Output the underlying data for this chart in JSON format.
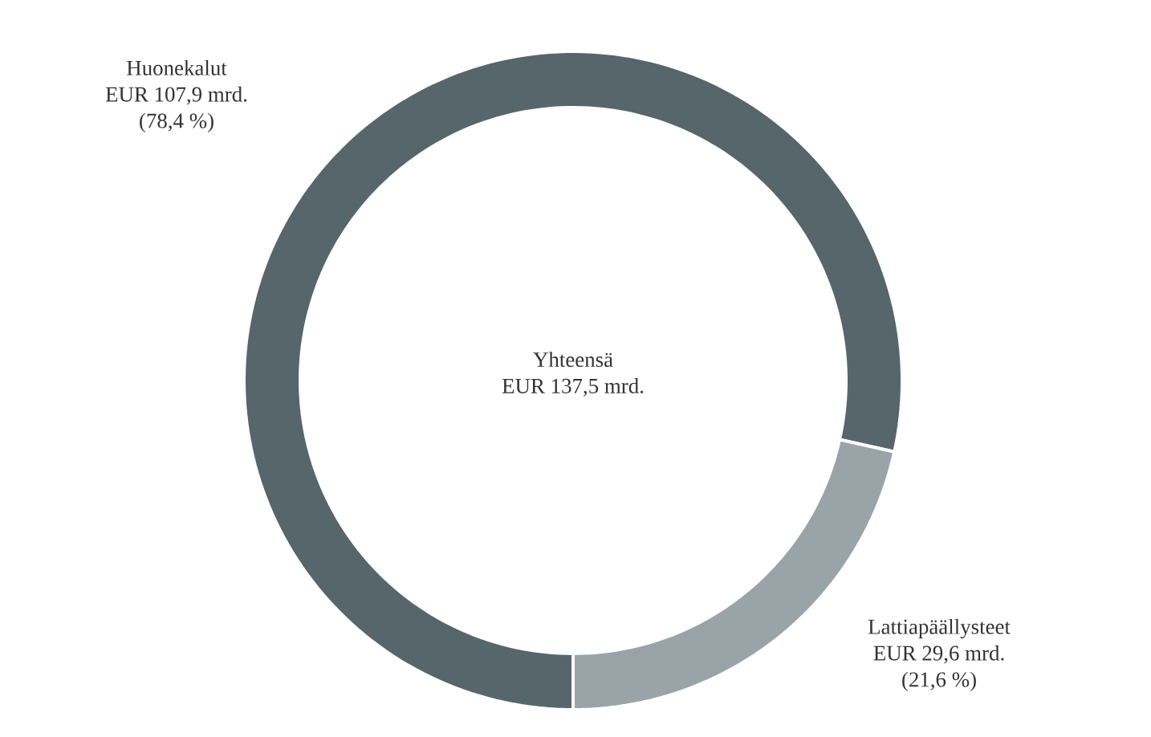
{
  "chart_data": {
    "type": "donut",
    "categories": [
      "Huonekalut",
      "Lattiapäällysteet"
    ],
    "values": [
      107.9,
      29.6
    ],
    "colors": [
      "#56666b",
      "#9aa3a8"
    ],
    "value_labels": [
      "EUR 107,9 mrd.",
      "EUR 29,6 mrd."
    ],
    "annotations": [
      "(78,4 %)",
      "(21,6 %)",
      "Yhteensä",
      "EUR 137,5 mrd."
    ]
  }
}
